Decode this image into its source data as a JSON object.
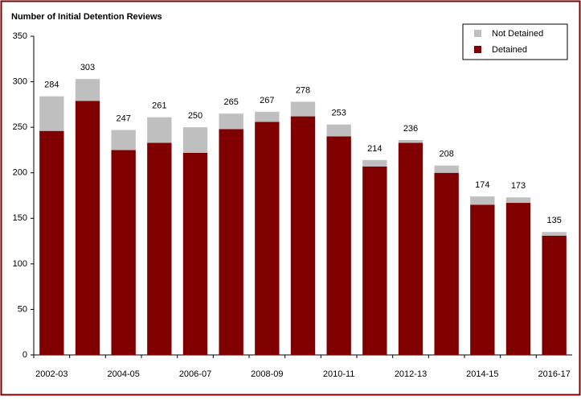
{
  "chart_data": {
    "type": "stacked_bar",
    "title": "Number of Initial Detention Reviews",
    "categories": [
      "2002-03",
      null,
      "2004-05",
      null,
      "2006-07",
      null,
      "2008-09",
      null,
      "2010-11",
      null,
      "2012-13",
      null,
      "2014-15",
      null,
      "2016-17"
    ],
    "series": [
      {
        "name": "Detained",
        "color": "#800000",
        "values": [
          246,
          279,
          225,
          233,
          222,
          248,
          256,
          262,
          240,
          207,
          233,
          200,
          165,
          167,
          131
        ]
      },
      {
        "name": "Not Detained",
        "color": "#bfbfbf",
        "values": [
          38,
          24,
          22,
          28,
          28,
          17,
          11,
          16,
          13,
          7,
          3,
          8,
          9,
          6,
          4
        ]
      }
    ],
    "totals": [
      284,
      303,
      247,
      261,
      250,
      265,
      267,
      278,
      253,
      214,
      236,
      208,
      174,
      173,
      135
    ],
    "ylim": [
      0,
      350
    ],
    "yticks": [
      0,
      50,
      100,
      150,
      200,
      250,
      300,
      350
    ],
    "grid": false,
    "legend": "top-right"
  }
}
